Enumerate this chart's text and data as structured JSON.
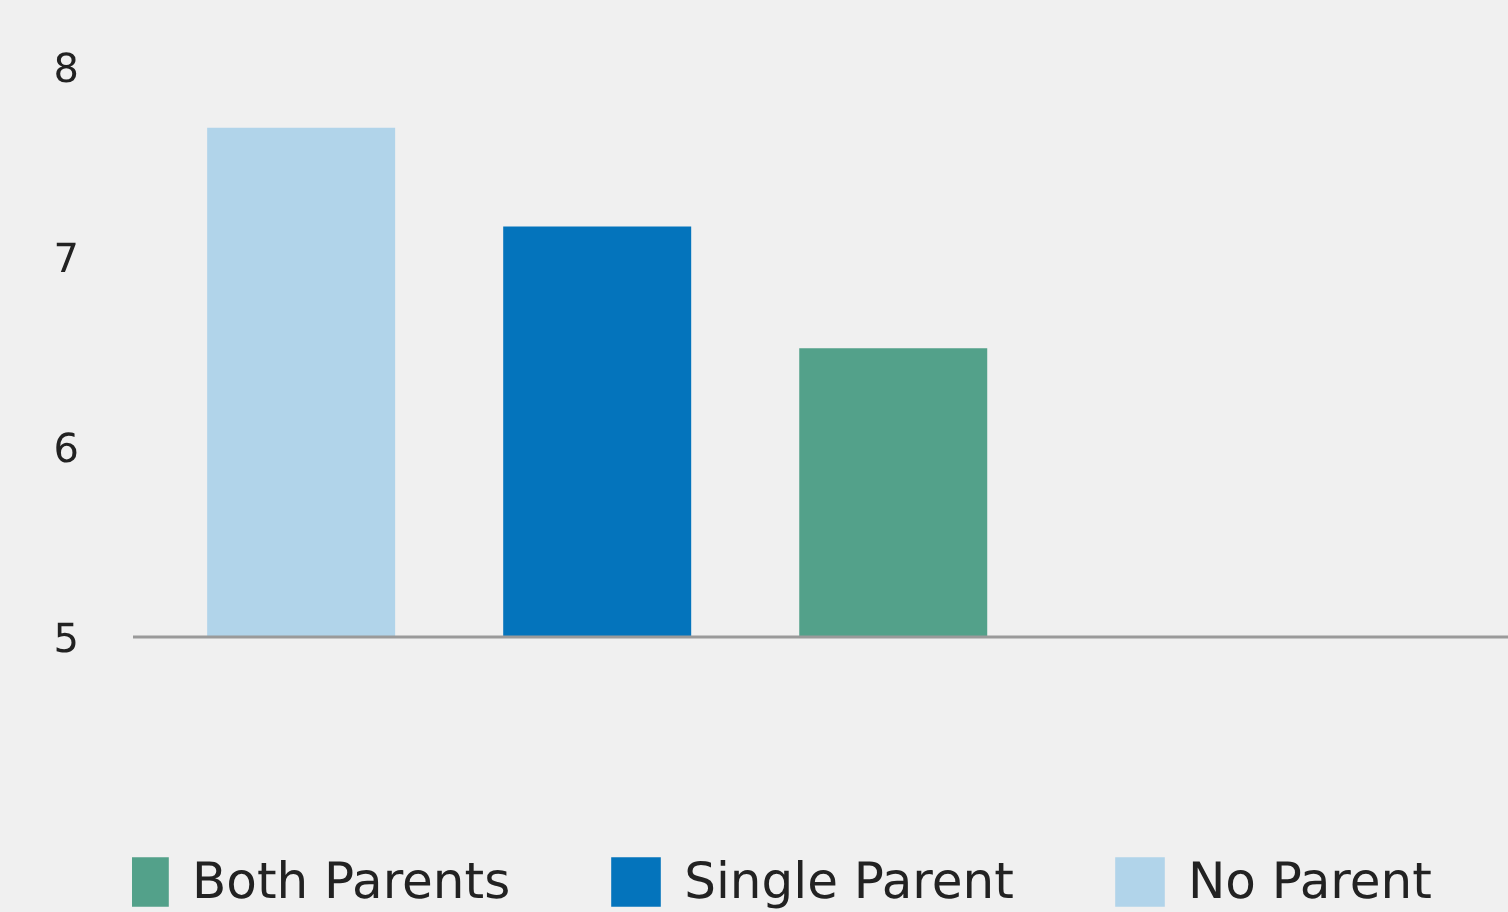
{
  "chart_data": {
    "type": "bar",
    "stacked": true,
    "categories": [
      null,
      null,
      null
    ],
    "series": [
      {
        "name": "Both Parents",
        "color": "#53a18a",
        "values": [
          null,
          null,
          6.52
        ]
      },
      {
        "name": "Single Parent",
        "color": "#0474bc",
        "values": [
          null,
          7.16,
          null
        ]
      },
      {
        "name": "No Parent",
        "color": "#b1d4ea",
        "values": [
          7.68,
          null,
          null
        ]
      }
    ],
    "ylim": [
      5,
      8
    ],
    "yticks": [
      5,
      6,
      7,
      8
    ],
    "grid": false,
    "legend": "bottom",
    "tick_labels": "y"
  }
}
